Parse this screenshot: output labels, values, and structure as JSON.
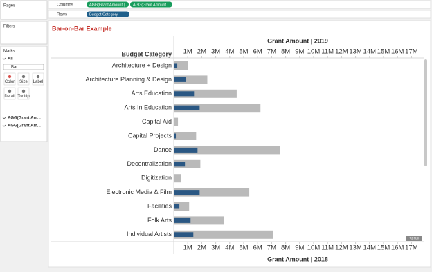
{
  "ui": {
    "pages": "Pages",
    "filters": "Filters",
    "marks": "Marks",
    "all": "All",
    "mark_type": "Bar",
    "cards": [
      "Color",
      "Size",
      "Label",
      "Detail",
      "Tooltip"
    ],
    "mark_layers": [
      "AGG(Grant Am...",
      "AGG(Grant Am..."
    ],
    "columns_label": "Columns",
    "rows_label": "Rows",
    "column_pills": [
      "AGG(Grant Amount | ...",
      "AGG(Grant Amount | ..."
    ],
    "row_pills": [
      "Budget Category"
    ],
    "null_badge": "+3 null"
  },
  "chart_data": {
    "type": "bar",
    "orientation": "horizontal",
    "title": "Bar-on-Bar Example",
    "category_header": "Budget Category",
    "categories": [
      "Architecture + Design",
      "Architecture Planning & Design",
      "Arts Education",
      "Arts In Education",
      "Capital Aid",
      "Capital Projects",
      "Dance",
      "Decentralization",
      "Digitization",
      "Electronic Media & Film",
      "Facilities",
      "Folk Arts",
      "Individual Artists"
    ],
    "series": [
      {
        "name": "Grant Amount | 2018",
        "color": "#bababa",
        "values": [
          1000000,
          2400000,
          4500000,
          6200000,
          300000,
          1600000,
          7600000,
          1900000,
          500000,
          5400000,
          1100000,
          3600000,
          7100000
        ]
      },
      {
        "name": "Grant Amount | 2019",
        "color": "#2a5783",
        "axis": "x2",
        "values": [
          250000,
          850000,
          1450000,
          1850000,
          0,
          150000,
          1700000,
          800000,
          0,
          1850000,
          400000,
          1200000,
          1400000
        ]
      }
    ],
    "xlim": [
      0,
      17500000
    ],
    "xticks": [
      {
        "value": 1000000,
        "label": "1M"
      },
      {
        "value": 2000000,
        "label": "2M"
      },
      {
        "value": 3000000,
        "label": "3M"
      },
      {
        "value": 4000000,
        "label": "4M"
      },
      {
        "value": 5000000,
        "label": "5M"
      },
      {
        "value": 6000000,
        "label": "6M"
      },
      {
        "value": 7000000,
        "label": "7M"
      },
      {
        "value": 8000000,
        "label": "8M"
      },
      {
        "value": 9000000,
        "label": "9M"
      },
      {
        "value": 10000000,
        "label": "10M"
      },
      {
        "value": 11000000,
        "label": "11M"
      },
      {
        "value": 12000000,
        "label": "12M"
      },
      {
        "value": 13000000,
        "label": "13M"
      },
      {
        "value": 14000000,
        "label": "14M"
      },
      {
        "value": 15000000,
        "label": "15M"
      },
      {
        "value": 16000000,
        "label": "16M"
      },
      {
        "value": 17000000,
        "label": "17M"
      }
    ],
    "grid": false
  }
}
